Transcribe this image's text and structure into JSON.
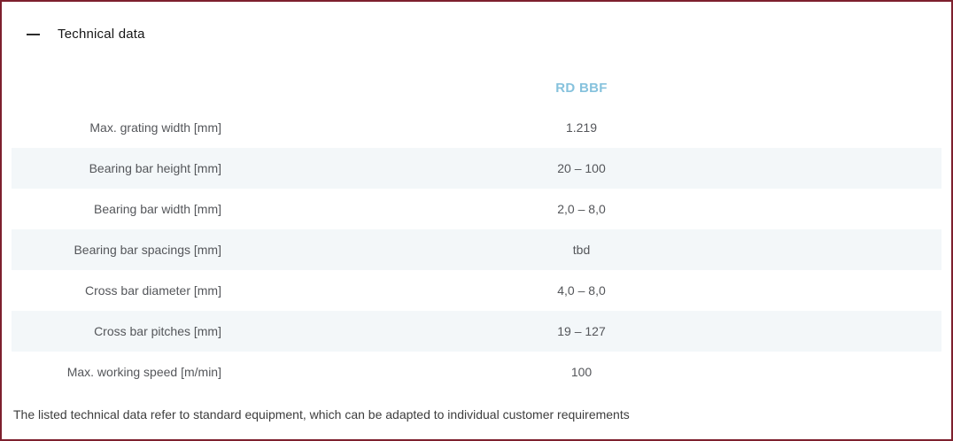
{
  "panel": {
    "title": "Technical data",
    "footnote": "The listed technical data refer to standard equipment, which can be adapted to individual customer requirements"
  },
  "table": {
    "column_header": "RD BBF",
    "rows": [
      {
        "label": "Max. grating width [mm]",
        "value": "1.219"
      },
      {
        "label": "Bearing bar height [mm]",
        "value": "20 – 100"
      },
      {
        "label": "Bearing bar width [mm]",
        "value": "2,0 – 8,0"
      },
      {
        "label": "Bearing bar spacings [mm]",
        "value": "tbd"
      },
      {
        "label": "Cross bar diameter [mm]",
        "value": "4,0 – 8,0"
      },
      {
        "label": "Cross bar pitches [mm]",
        "value": "19 – 127"
      },
      {
        "label": "Max. working speed [m/min]",
        "value": "100"
      }
    ]
  },
  "colors": {
    "border": "#7d202e",
    "stripe": "#f3f7f9",
    "accent_header": "#86c2dd",
    "text": "#54565a"
  }
}
